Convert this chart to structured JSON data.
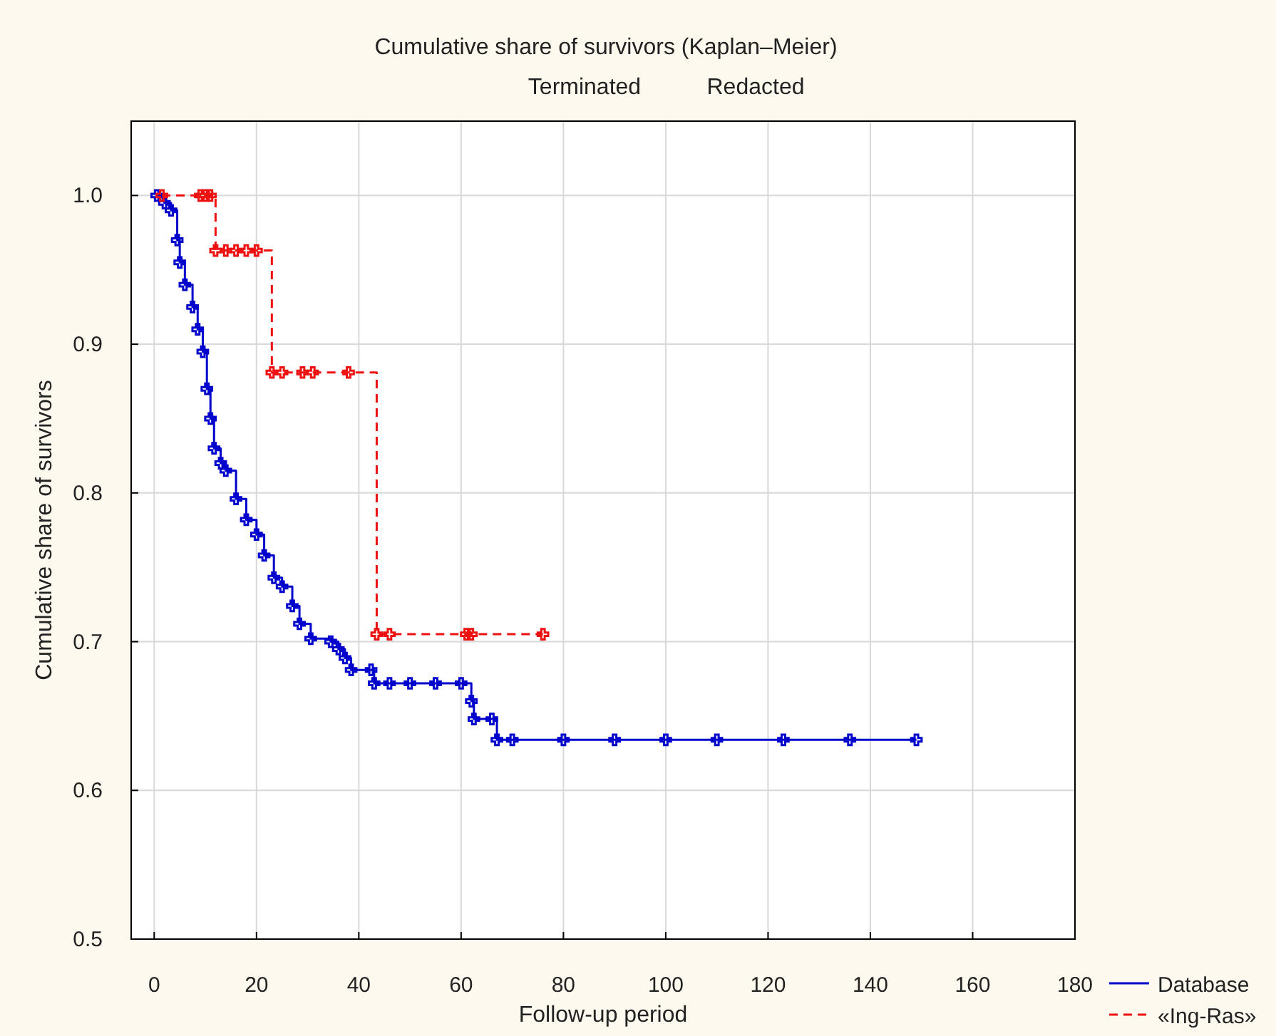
{
  "chart_data": {
    "type": "step",
    "title": "Cumulative share of survivors (Kaplan–Meier)",
    "annotations": [
      "Terminated",
      "Redacted"
    ],
    "xlabel": "Follow-up period",
    "ylabel": "Cumulative share of survivors",
    "xlim": [
      -4.5,
      180
    ],
    "xticks": [
      0,
      20,
      40,
      60,
      80,
      100,
      120,
      140,
      160,
      180
    ],
    "ylim": [
      0.5,
      1.05
    ],
    "yticks": [
      {
        "value": 0.5,
        "label": "0.5"
      },
      {
        "value": 0.6,
        "label": "0.6"
      },
      {
        "value": 0.7,
        "label": "0.7"
      },
      {
        "value": 0.8,
        "label": "0.8"
      },
      {
        "value": 0.9,
        "label": "0.9"
      },
      {
        "value": 1,
        "label": "1.0"
      }
    ],
    "grid": true,
    "legend": "bottom right",
    "marker": "cross",
    "series": [
      {
        "name": "Database",
        "color": "#0000cc",
        "line_style": "solid",
        "x": [
          0.5,
          2,
          3.3,
          4.5,
          5,
          6,
          7.5,
          8.5,
          9.5,
          10.3,
          11,
          11.7,
          13,
          14,
          16,
          18,
          20,
          21.5,
          23.4,
          25,
          27,
          28.4,
          30.6,
          34.5,
          36,
          37.3,
          38.5,
          42.4,
          43,
          46,
          50,
          55,
          60,
          62,
          62.5,
          66,
          67,
          70,
          80,
          90,
          100,
          110,
          123,
          136,
          149
        ],
        "values": [
          1,
          0.995,
          0.99,
          0.97,
          0.955,
          0.94,
          0.925,
          0.91,
          0.895,
          0.87,
          0.85,
          0.83,
          0.82,
          0.815,
          0.796,
          0.782,
          0.772,
          0.758,
          0.743,
          0.737,
          0.724,
          0.712,
          0.702,
          0.7,
          0.695,
          0.689,
          0.681,
          0.681,
          0.672,
          0.672,
          0.672,
          0.672,
          0.672,
          0.66,
          0.648,
          0.648,
          0.634,
          0.634,
          0.634,
          0.634,
          0.634,
          0.634,
          0.634,
          0.634,
          0.634
        ]
      },
      {
        "name": "«Ing-Ras»",
        "color": "#ee1111",
        "line_style": "dashed",
        "x": [
          1.5,
          9,
          10,
          11,
          12,
          14,
          16,
          18,
          20,
          23,
          25,
          29,
          31,
          38,
          43.5,
          46,
          61,
          62,
          76
        ],
        "values": [
          1,
          1,
          1,
          1,
          0.963,
          0.963,
          0.963,
          0.963,
          0.963,
          0.881,
          0.881,
          0.881,
          0.881,
          0.881,
          0.705,
          0.705,
          0.705,
          0.705,
          0.705
        ]
      }
    ]
  }
}
